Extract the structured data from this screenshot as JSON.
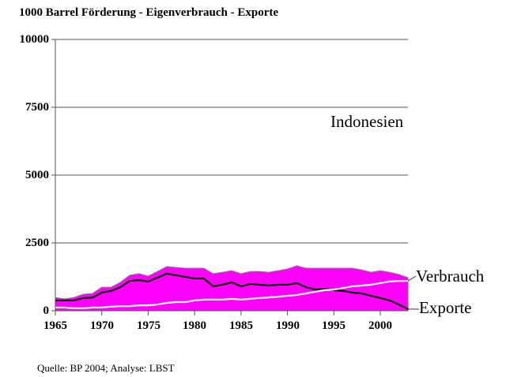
{
  "chart_data": {
    "type": "area",
    "title": "1000 Barrel Förderung - Eigenverbrauch - Exporte",
    "annotation": "Indonesien",
    "xlabel": "",
    "ylabel": "1000 Barrel",
    "ylim": [
      0,
      10000
    ],
    "yticks": [
      0,
      2500,
      5000,
      7500,
      10000
    ],
    "xticks": [
      1965,
      1970,
      1975,
      1980,
      1985,
      1990,
      1995,
      2000
    ],
    "grid": "horizontal",
    "x": [
      1965,
      1966,
      1967,
      1968,
      1969,
      1970,
      1971,
      1972,
      1973,
      1974,
      1975,
      1976,
      1977,
      1978,
      1979,
      1980,
      1981,
      1982,
      1983,
      1984,
      1985,
      1986,
      1987,
      1988,
      1989,
      1990,
      1991,
      1992,
      1993,
      1994,
      1995,
      1996,
      1997,
      1998,
      1999,
      2000,
      2001,
      2002,
      2003
    ],
    "series": [
      {
        "name": "Förderung",
        "style": "area",
        "color": "#ff00ff",
        "values": [
          490,
          440,
          490,
          610,
          640,
          870,
          870,
          1050,
          1310,
          1370,
          1280,
          1450,
          1630,
          1600,
          1570,
          1570,
          1570,
          1370,
          1420,
          1480,
          1370,
          1450,
          1450,
          1420,
          1480,
          1540,
          1660,
          1570,
          1570,
          1570,
          1570,
          1570,
          1570,
          1510,
          1420,
          1480,
          1420,
          1340,
          1220
        ]
      },
      {
        "name": "Exporte",
        "style": "line",
        "color": "#000000",
        "values": [
          380,
          380,
          380,
          470,
          490,
          670,
          730,
          870,
          1100,
          1130,
          1080,
          1220,
          1370,
          1310,
          1250,
          1190,
          1190,
          900,
          960,
          1050,
          900,
          990,
          960,
          930,
          960,
          960,
          1020,
          870,
          780,
          810,
          760,
          730,
          670,
          640,
          550,
          470,
          380,
          230,
          60
        ]
      },
      {
        "name": "Verbrauch",
        "style": "line",
        "color": "#ffffff",
        "values": [
          120,
          120,
          90,
          90,
          120,
          120,
          150,
          170,
          170,
          200,
          200,
          230,
          290,
          320,
          320,
          380,
          410,
          410,
          410,
          440,
          410,
          440,
          470,
          490,
          520,
          550,
          580,
          640,
          700,
          760,
          780,
          840,
          900,
          930,
          960,
          1020,
          1080,
          1100,
          1100
        ]
      }
    ]
  },
  "labels": {
    "title": "1000 Barrel Förderung - Eigenverbrauch - Exporte",
    "country": "Indonesien",
    "verbrauch": "Verbrauch",
    "exporte": "Exporte",
    "source": "Quelle: BP 2004; Analyse: LBST",
    "y_ticks": [
      "10000",
      "7500",
      "5000",
      "2500",
      "0"
    ],
    "x_ticks": [
      "1965",
      "1970",
      "1975",
      "1980",
      "1985",
      "1990",
      "1995",
      "2000"
    ]
  }
}
